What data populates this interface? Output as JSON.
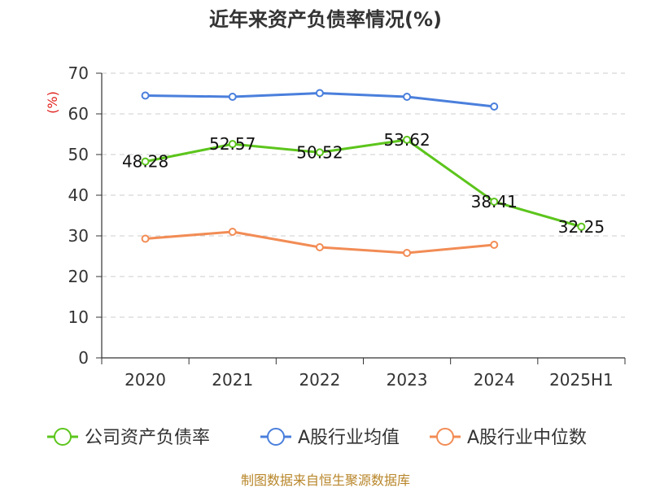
{
  "chart_data": {
    "type": "line",
    "title": "近年来资产负债率情况(%)",
    "ylabel": "(%)",
    "xlabel": "",
    "ylim": [
      0,
      70
    ],
    "yticks": [
      0,
      10,
      20,
      30,
      40,
      50,
      60,
      70
    ],
    "categories": [
      "2020",
      "2021",
      "2022",
      "2023",
      "2024",
      "2025H1"
    ],
    "grid": true,
    "legend_position": "bottom",
    "series": [
      {
        "name": "公司资产负债率",
        "color": "#5cc51c",
        "values": [
          48.28,
          52.57,
          50.52,
          53.62,
          38.41,
          32.25
        ],
        "labels": [
          "48.28",
          "52.57",
          "50.52",
          "53.62",
          "38.41",
          "32.25"
        ]
      },
      {
        "name": "A股行业均值",
        "color": "#4a7fdc",
        "values": [
          64.5,
          64.2,
          65.1,
          64.2,
          61.8,
          null
        ]
      },
      {
        "name": "A股行业中位数",
        "color": "#f28c55",
        "values": [
          29.3,
          31.0,
          27.2,
          25.8,
          27.8,
          null
        ]
      }
    ]
  },
  "source_text": "制图数据来自恒生聚源数据库"
}
